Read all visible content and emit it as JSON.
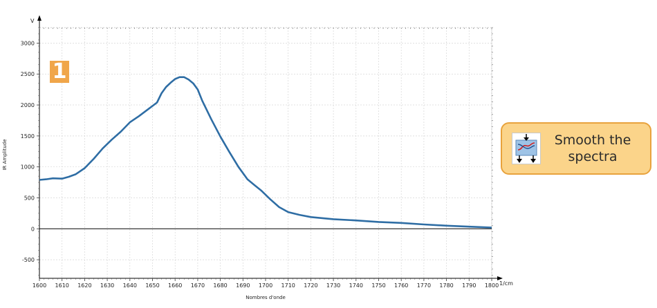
{
  "badge_number": "1",
  "step_card": {
    "line1": "Smooth the",
    "line2": "spectra",
    "icon": "smooth-spectra-icon"
  },
  "colors": {
    "line": "#2e6da4",
    "badge": "#f0a64a",
    "card_bg": "#fbd48a",
    "card_border": "#e8a23c"
  },
  "chart_data": {
    "type": "line",
    "title": "",
    "xlabel": "Nombres d'onde",
    "ylabel": "IR Amplitude",
    "x_unit": "1/cm",
    "y_unit": "V",
    "xlim": [
      1600,
      1800
    ],
    "ylim": [
      -800,
      3250
    ],
    "xticks": [
      1600,
      1610,
      1620,
      1630,
      1640,
      1650,
      1660,
      1670,
      1680,
      1690,
      1700,
      1710,
      1720,
      1730,
      1740,
      1750,
      1760,
      1770,
      1780,
      1790,
      1800
    ],
    "yticks": [
      -500,
      0,
      500,
      1000,
      1500,
      2000,
      2500,
      3000
    ],
    "grid": true,
    "series": [
      {
        "x": [
          1600,
          1603,
          1606,
          1610,
          1613,
          1616,
          1620,
          1624,
          1628,
          1632,
          1636,
          1640,
          1644,
          1648,
          1652,
          1654,
          1656,
          1658,
          1660,
          1662,
          1664,
          1666,
          1668,
          1670,
          1672,
          1676,
          1680,
          1684,
          1688,
          1692,
          1695,
          1698,
          1702,
          1706,
          1710,
          1715,
          1720,
          1730,
          1740,
          1750,
          1760,
          1770,
          1780,
          1790,
          1800
        ],
        "y": [
          790,
          800,
          815,
          810,
          840,
          880,
          980,
          1130,
          1300,
          1440,
          1570,
          1720,
          1820,
          1930,
          2040,
          2190,
          2290,
          2360,
          2420,
          2450,
          2450,
          2410,
          2350,
          2250,
          2070,
          1770,
          1490,
          1240,
          1000,
          800,
          710,
          620,
          480,
          350,
          270,
          225,
          190,
          155,
          135,
          110,
          95,
          70,
          50,
          35,
          20
        ]
      }
    ]
  }
}
